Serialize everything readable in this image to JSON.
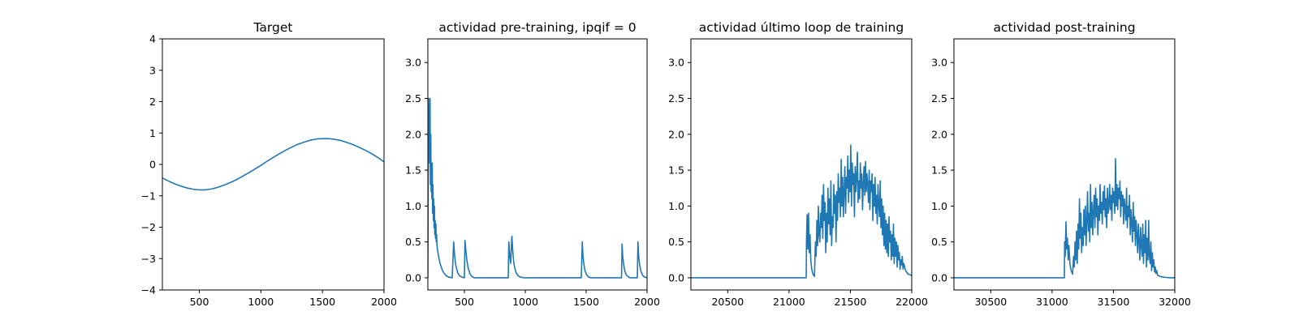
{
  "chart_data": [
    {
      "type": "line",
      "title": "Target",
      "xlim": [
        200,
        2000
      ],
      "ylim": [
        -4,
        4
      ],
      "xticks": [
        500,
        1000,
        1500,
        2000
      ],
      "yticks": [
        -4,
        -3,
        -2,
        -1,
        0,
        1,
        2,
        3,
        4
      ],
      "color": "#1f77b4",
      "series": [
        {
          "x": [
            200,
            250,
            300,
            350,
            400,
            450,
            500,
            525,
            550,
            600,
            650,
            700,
            750,
            800,
            850,
            900,
            950,
            1000,
            1050,
            1100,
            1150,
            1200,
            1250,
            1300,
            1350,
            1400,
            1450,
            1500,
            1525,
            1550,
            1600,
            1650,
            1700,
            1750,
            1800,
            1850,
            1900,
            1950,
            2000
          ],
          "y": [
            -0.43,
            -0.53,
            -0.62,
            -0.69,
            -0.75,
            -0.79,
            -0.81,
            -0.81,
            -0.81,
            -0.78,
            -0.73,
            -0.66,
            -0.58,
            -0.49,
            -0.38,
            -0.27,
            -0.15,
            -0.03,
            0.1,
            0.22,
            0.34,
            0.45,
            0.55,
            0.64,
            0.71,
            0.77,
            0.81,
            0.82,
            0.82,
            0.82,
            0.8,
            0.76,
            0.7,
            0.63,
            0.54,
            0.45,
            0.34,
            0.22,
            0.08
          ]
        }
      ]
    },
    {
      "type": "line",
      "title": "actividad pre-training, ipqif = 0",
      "xlim": [
        200,
        2000
      ],
      "ylim": [
        -0.17,
        3.33
      ],
      "xticks": [
        500,
        1000,
        1500,
        2000
      ],
      "yticks": [
        0.0,
        0.5,
        1.0,
        1.5,
        2.0,
        2.5,
        3.0
      ],
      "color": "#1f77b4",
      "series": [
        {
          "x": [
            200,
            203,
            206,
            209,
            212,
            215,
            218,
            221,
            224,
            227,
            230,
            233,
            236,
            239,
            242,
            245,
            248,
            251,
            254,
            257,
            260,
            263,
            266,
            269,
            272,
            275,
            280,
            290,
            300,
            310,
            320,
            335,
            350,
            370,
            400,
            412,
            420,
            430,
            445,
            460,
            480,
            500,
            505,
            512,
            520,
            530,
            545,
            560,
            580,
            600,
            700,
            860,
            865,
            873,
            880,
            890,
            898,
            905,
            913,
            925,
            940,
            960,
            990,
            1100,
            1300,
            1460,
            1468,
            1473,
            1480,
            1490,
            1505,
            1520,
            1540,
            1560,
            1600,
            1700,
            1790,
            1795,
            1800,
            1808,
            1818,
            1830,
            1845,
            1860,
            1880,
            1920,
            1925,
            1931,
            1940,
            1952,
            1965,
            1980,
            2000
          ],
          "y": [
            0.0,
            1.5,
            2.5,
            1.8,
            2.4,
            1.6,
            2.5,
            1.3,
            2.0,
            1.2,
            1.4,
            1.1,
            1.6,
            0.9,
            1.3,
            0.8,
            1.1,
            0.7,
            1.0,
            0.6,
            0.8,
            0.55,
            0.75,
            0.5,
            0.6,
            0.45,
            0.38,
            0.28,
            0.2,
            0.15,
            0.1,
            0.06,
            0.03,
            0.01,
            0.0,
            0.5,
            0.3,
            0.17,
            0.07,
            0.03,
            0.01,
            0.0,
            0.52,
            0.38,
            0.25,
            0.14,
            0.06,
            0.02,
            0.0,
            0.0,
            0.0,
            0.0,
            0.5,
            0.3,
            0.2,
            0.58,
            0.35,
            0.22,
            0.14,
            0.07,
            0.03,
            0.01,
            0.0,
            0.0,
            0.0,
            0.0,
            0.5,
            0.32,
            0.2,
            0.1,
            0.04,
            0.01,
            0.0,
            0.0,
            0.0,
            0.0,
            0.0,
            0.47,
            0.3,
            0.18,
            0.09,
            0.04,
            0.015,
            0.0,
            0.0,
            0.0,
            0.5,
            0.3,
            0.17,
            0.08,
            0.03,
            0.01,
            0.0
          ]
        }
      ]
    },
    {
      "type": "line",
      "title": "actividad último loop de training",
      "xlim": [
        20200,
        22000
      ],
      "ylim": [
        -0.17,
        3.33
      ],
      "xticks": [
        20500,
        21000,
        21500,
        22000
      ],
      "yticks": [
        0.0,
        0.5,
        1.0,
        1.5,
        2.0,
        2.5,
        3.0
      ],
      "color": "#1f77b4",
      "series": [
        {
          "x": [
            20200,
            21140,
            21142,
            21147,
            21153,
            21159,
            21165,
            21171,
            21177,
            21185,
            21195,
            21207,
            21215,
            21221,
            21227,
            21233,
            21239,
            21245,
            21251,
            21257,
            21263,
            21269,
            21275,
            21281,
            21287,
            21293,
            21299,
            21305,
            21311,
            21317,
            21323,
            21329,
            21335,
            21341,
            21347,
            21353,
            21359,
            21365,
            21371,
            21377,
            21383,
            21389,
            21395,
            21401,
            21407,
            21413,
            21419,
            21425,
            21431,
            21437,
            21443,
            21449,
            21455,
            21461,
            21467,
            21473,
            21479,
            21485,
            21491,
            21497,
            21503,
            21509,
            21515,
            21521,
            21527,
            21533,
            21539,
            21545,
            21551,
            21557,
            21563,
            21569,
            21575,
            21581,
            21587,
            21593,
            21599,
            21605,
            21611,
            21617,
            21623,
            21629,
            21635,
            21641,
            21647,
            21653,
            21659,
            21665,
            21671,
            21677,
            21683,
            21689,
            21695,
            21701,
            21707,
            21713,
            21719,
            21725,
            21731,
            21737,
            21743,
            21749,
            21755,
            21761,
            21767,
            21773,
            21779,
            21785,
            21791,
            21797,
            21803,
            21809,
            21815,
            21821,
            21827,
            21833,
            21839,
            21845,
            21851,
            21857,
            21863,
            21869,
            21875,
            21881,
            21887,
            21893,
            21899,
            21905,
            21911,
            21917,
            21923,
            21929,
            21935,
            21950,
            21970,
            21990,
            22000
          ],
          "y": [
            0.0,
            0.0,
            0.5,
            0.88,
            0.4,
            0.9,
            0.35,
            0.6,
            0.25,
            0.12,
            0.05,
            0.02,
            0.5,
            0.3,
            0.8,
            0.45,
            1.0,
            0.6,
            0.5,
            0.9,
            0.7,
            1.15,
            0.55,
            1.3,
            0.8,
            1.05,
            0.35,
            0.9,
            0.5,
            1.25,
            0.75,
            1.1,
            0.6,
            1.35,
            0.45,
            0.85,
            0.7,
            1.3,
            0.9,
            1.15,
            0.5,
            1.2,
            0.8,
            1.45,
            1.05,
            1.25,
            0.85,
            1.65,
            1.0,
            1.4,
            0.85,
            1.2,
            1.55,
            0.9,
            1.4,
            1.25,
            1.7,
            1.05,
            1.5,
            1.2,
            1.85,
            1.0,
            1.6,
            1.3,
            1.45,
            0.85,
            1.55,
            1.2,
            1.4,
            1.75,
            1.05,
            1.35,
            1.1,
            1.6,
            1.25,
            1.45,
            0.95,
            1.3,
            1.55,
            1.15,
            1.62,
            1.2,
            1.45,
            1.3,
            1.05,
            1.5,
            0.95,
            1.35,
            1.2,
            1.45,
            0.8,
            1.3,
            1.0,
            1.4,
            0.9,
            1.15,
            0.75,
            1.3,
            1.0,
            0.85,
            1.35,
            0.7,
            1.1,
            0.6,
            1.0,
            0.45,
            0.9,
            0.4,
            0.8,
            0.35,
            0.75,
            0.3,
            0.85,
            0.5,
            0.65,
            0.25,
            0.6,
            0.3,
            0.75,
            0.2,
            0.55,
            0.3,
            0.5,
            0.15,
            0.45,
            0.25,
            0.35,
            0.12,
            0.25,
            0.18,
            0.3,
            0.12,
            0.2,
            0.1,
            0.05,
            0.04,
            0.03
          ]
        }
      ]
    },
    {
      "type": "line",
      "title": "actividad post-training",
      "xlim": [
        30200,
        32000
      ],
      "ylim": [
        -0.17,
        3.33
      ],
      "xticks": [
        30500,
        31000,
        31500,
        32000
      ],
      "yticks": [
        0.0,
        0.5,
        1.0,
        1.5,
        2.0,
        2.5,
        3.0
      ],
      "color": "#1f77b4",
      "series": [
        {
          "x": [
            30200,
            31100,
            31102,
            31107,
            31113,
            31119,
            31125,
            31131,
            31137,
            31145,
            31155,
            31167,
            31175,
            31181,
            31187,
            31193,
            31199,
            31205,
            31211,
            31217,
            31223,
            31229,
            31235,
            31241,
            31247,
            31253,
            31259,
            31265,
            31271,
            31277,
            31283,
            31289,
            31295,
            31301,
            31307,
            31313,
            31319,
            31325,
            31331,
            31337,
            31343,
            31349,
            31355,
            31361,
            31367,
            31373,
            31379,
            31385,
            31391,
            31397,
            31403,
            31409,
            31415,
            31421,
            31427,
            31433,
            31439,
            31445,
            31451,
            31457,
            31463,
            31469,
            31475,
            31481,
            31487,
            31493,
            31499,
            31505,
            31511,
            31517,
            31523,
            31529,
            31535,
            31541,
            31547,
            31553,
            31559,
            31565,
            31571,
            31577,
            31583,
            31589,
            31595,
            31601,
            31607,
            31613,
            31619,
            31625,
            31631,
            31637,
            31643,
            31649,
            31655,
            31661,
            31667,
            31673,
            31679,
            31685,
            31691,
            31697,
            31703,
            31709,
            31715,
            31721,
            31727,
            31733,
            31739,
            31745,
            31751,
            31757,
            31763,
            31769,
            31775,
            31781,
            31787,
            31793,
            31799,
            31805,
            31811,
            31817,
            31823,
            31829,
            31835,
            31841,
            31847,
            31853,
            31859,
            31865,
            31880,
            31900,
            31930,
            31960,
            32000
          ],
          "y": [
            0.0,
            0.0,
            0.5,
            0.3,
            0.78,
            0.4,
            0.55,
            0.25,
            0.45,
            0.2,
            0.1,
            0.05,
            0.3,
            0.15,
            0.5,
            0.25,
            0.65,
            0.2,
            0.75,
            0.4,
            1.1,
            0.55,
            0.9,
            0.35,
            0.7,
            0.45,
            0.95,
            0.6,
            1.0,
            0.45,
            0.8,
            1.2,
            0.65,
            0.9,
            0.5,
            1.3,
            0.7,
            1.05,
            0.6,
            0.95,
            1.15,
            0.7,
            1.25,
            0.85,
            1.1,
            0.6,
            1.0,
            0.8,
            1.3,
            0.9,
            1.05,
            0.75,
            1.2,
            0.95,
            1.28,
            0.85,
            1.1,
            0.7,
            1.25,
            0.9,
            1.0,
            1.3,
            0.95,
            1.15,
            0.8,
            1.25,
            1.05,
            1.2,
            0.9,
            1.66,
            1.0,
            1.3,
            0.95,
            1.25,
            1.1,
            1.35,
            0.85,
            1.2,
            1.0,
            1.15,
            0.75,
            1.1,
            0.95,
            0.8,
            1.25,
            0.7,
            1.0,
            0.85,
            1.15,
            0.6,
            0.95,
            0.75,
            0.5,
            1.05,
            0.65,
            0.85,
            0.45,
            0.8,
            0.6,
            0.35,
            0.75,
            0.5,
            0.25,
            0.7,
            0.45,
            0.3,
            0.75,
            0.2,
            0.6,
            0.35,
            0.8,
            0.15,
            0.55,
            0.25,
            0.8,
            0.3,
            0.2,
            0.5,
            0.1,
            0.35,
            0.15,
            0.25,
            0.08,
            0.15,
            0.06,
            0.1,
            0.04,
            0.03,
            0.02,
            0.01,
            0.005,
            0.0,
            0.0
          ]
        }
      ]
    }
  ]
}
